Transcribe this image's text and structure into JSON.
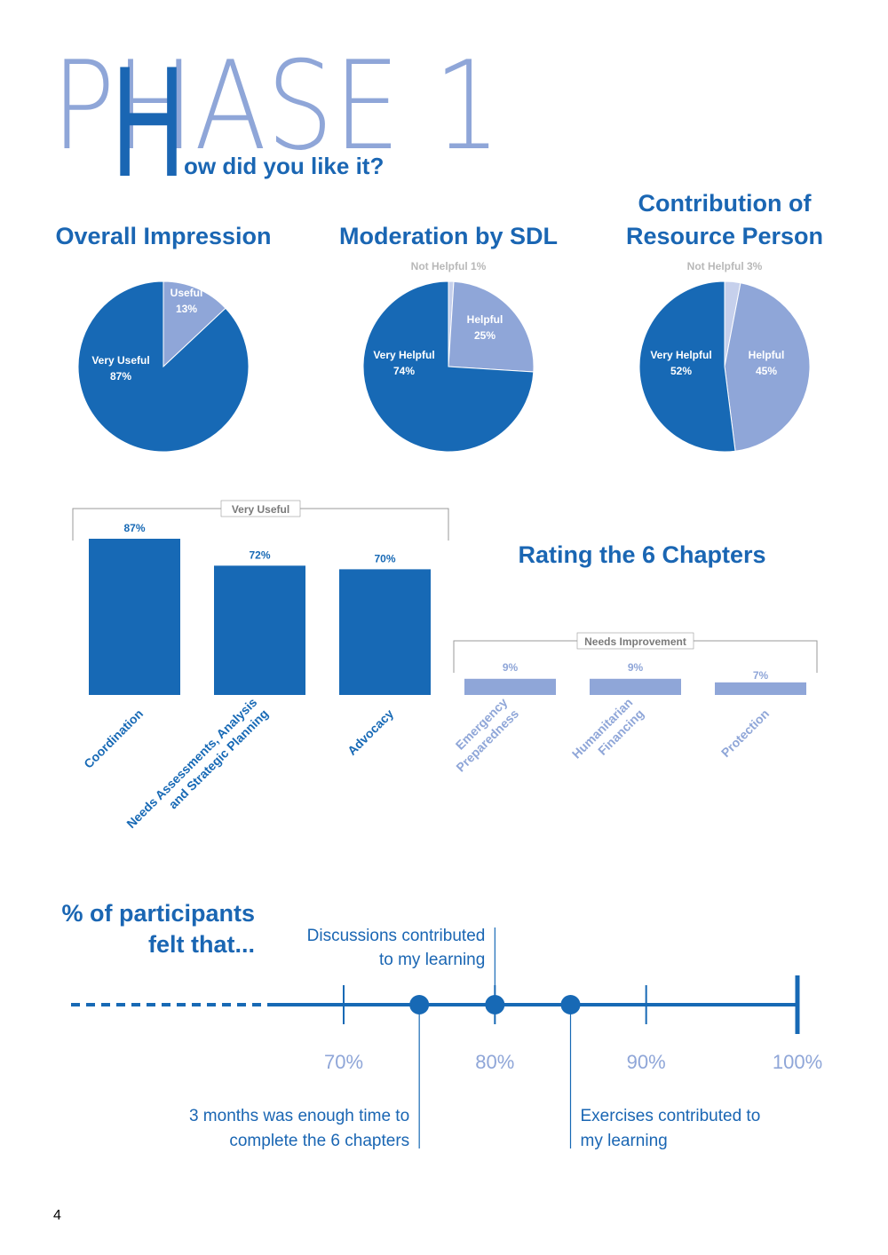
{
  "header": {
    "phase": "PHASE 1",
    "big_letter": "H",
    "subtitle": "ow did you like it?"
  },
  "colors": {
    "dark": "#1769b5",
    "light": "#8fa6d8",
    "lighter": "#c6d0ec",
    "grey": "#b8b8b8"
  },
  "chart_data": [
    {
      "type": "pie",
      "title": "Overall Impression",
      "slices": [
        {
          "label": "Useful",
          "value": 13,
          "text": "13%",
          "shade": "light"
        },
        {
          "label": "Very Useful",
          "value": 87,
          "text": "87%",
          "shade": "dark"
        }
      ]
    },
    {
      "type": "pie",
      "title": "Moderation by SDL",
      "slices": [
        {
          "label": "Not Helpful",
          "value": 1,
          "text": "1%",
          "shade": "lighter",
          "outside": true
        },
        {
          "label": "Helpful",
          "value": 25,
          "text": "25%",
          "shade": "light"
        },
        {
          "label": "Very Helpful",
          "value": 74,
          "text": "74%",
          "shade": "dark"
        }
      ]
    },
    {
      "type": "pie",
      "title_lines": [
        "Contribution of",
        "Resource Person"
      ],
      "slices": [
        {
          "label": "Not Helpful",
          "value": 3,
          "text": "3%",
          "shade": "lighter",
          "outside": true
        },
        {
          "label": "Helpful",
          "value": 45,
          "text": "45%",
          "shade": "light"
        },
        {
          "label": "Very Helpful",
          "value": 52,
          "text": "52%",
          "shade": "dark"
        }
      ]
    },
    {
      "type": "bar",
      "title": "Rating the 6 Chapters",
      "ylim": [
        0,
        100
      ],
      "groups": [
        {
          "label": "Very Useful",
          "shade": "dark",
          "bars": [
            {
              "category": [
                "Coordination"
              ],
              "value": 87,
              "text": "87%"
            },
            {
              "category": [
                "Needs Assessments, Analysis",
                "and Strategic Planning"
              ],
              "value": 72,
              "text": "72%"
            },
            {
              "category": [
                "Advocacy"
              ],
              "value": 70,
              "text": "70%"
            }
          ]
        },
        {
          "label": "Needs Improvement",
          "shade": "light",
          "bars": [
            {
              "category": [
                "Emergency",
                "Preparedness"
              ],
              "value": 9,
              "text": "9%"
            },
            {
              "category": [
                "Humanitarian",
                "Financing"
              ],
              "value": 9,
              "text": "9%"
            },
            {
              "category": [
                "Protection"
              ],
              "value": 7,
              "text": "7%"
            }
          ]
        }
      ]
    },
    {
      "type": "timeline",
      "title_lines": [
        "% of participants",
        "felt that..."
      ],
      "ticks": [
        {
          "value": 70,
          "text": "70%"
        },
        {
          "value": 80,
          "text": "80%"
        },
        {
          "value": 90,
          "text": "90%"
        },
        {
          "value": 100,
          "text": "100%"
        }
      ],
      "points": [
        {
          "value": 75,
          "lines": [
            "3 months was enough time to",
            "complete the 6 chapters"
          ],
          "side": "below"
        },
        {
          "value": 80,
          "lines": [
            "Discussions contributed",
            "to my learning"
          ],
          "side": "above"
        },
        {
          "value": 85,
          "lines": [
            "Exercises contributed to",
            "my learning"
          ],
          "side": "below"
        }
      ]
    }
  ],
  "footer": {
    "page_number": "4"
  }
}
